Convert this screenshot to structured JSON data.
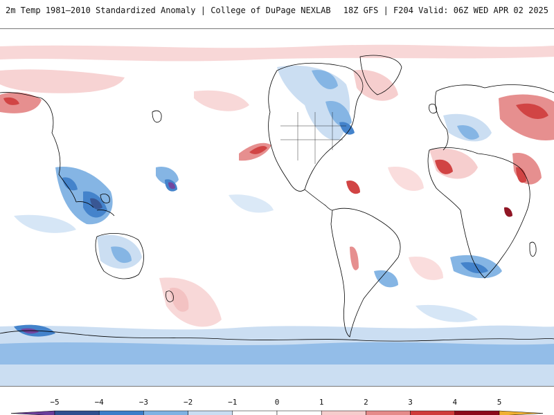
{
  "header": {
    "title": "2m Temp 1981–2010 Standardized Anomaly | College of DuPage NEXLAB",
    "run_info": "18Z GFS | F204 Valid: 06Z WED APR 02 2025"
  },
  "legend": {
    "ticks": [
      "−5",
      "−4",
      "−3",
      "−2",
      "−1",
      "0",
      "1",
      "2",
      "3",
      "4",
      "5"
    ],
    "colors": [
      "#6a3d9a",
      "#2f4f8f",
      "#3a7dc9",
      "#7fb2e3",
      "#c9ddf2",
      "#ffffff",
      "#ffffff",
      "#f6cccc",
      "#e58a8a",
      "#cf3a3a",
      "#8b0a1a",
      "#f0b030"
    ]
  },
  "map": {
    "projection": "equirectangular",
    "variable": "2m temperature standardized anomaly",
    "colors": {
      "strong_cold": "#6a3d9a",
      "cold": "#3a7dc9",
      "cool": "#7fb2e3",
      "slight_cool": "#c9ddf2",
      "slight_warm": "#f6cccc",
      "warm": "#e58a8a",
      "hot": "#cf3a3a",
      "very_hot": "#8b0a1a",
      "coast": "#000000"
    }
  }
}
